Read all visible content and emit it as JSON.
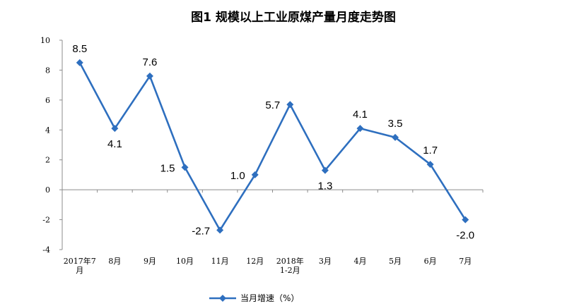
{
  "chart_data": {
    "type": "line",
    "title": "图1  规模以上工业原煤产量月度走势图",
    "categories": [
      "2017年7月",
      "8月",
      "9月",
      "10月",
      "11月",
      "12月",
      "2018年1-2月",
      "3月",
      "4月",
      "5月",
      "6月",
      "7月"
    ],
    "category_lines": [
      [
        "2017年7",
        "月"
      ],
      [
        "8月"
      ],
      [
        "9月"
      ],
      [
        "10月"
      ],
      [
        "11月"
      ],
      [
        "12月"
      ],
      [
        "2018年",
        "1-2月"
      ],
      [
        "3月"
      ],
      [
        "4月"
      ],
      [
        "5月"
      ],
      [
        "6月"
      ],
      [
        "7月"
      ]
    ],
    "series": [
      {
        "name": "当月增速（%）",
        "values": [
          8.5,
          4.1,
          7.6,
          1.5,
          -2.7,
          1.0,
          5.7,
          1.3,
          4.1,
          3.5,
          1.7,
          -2.0
        ],
        "data_labels": [
          "8.5",
          "4.1",
          "7.6",
          "1.5",
          "-2.7",
          "1.0",
          "5.7",
          "1.3",
          "4.1",
          "3.5",
          "1.7",
          "-2.0"
        ],
        "color": "#2e6fbf"
      }
    ],
    "yticks": [
      "10",
      "8",
      "6",
      "4",
      "2",
      "0",
      "-2",
      "-4"
    ],
    "ylim": [
      -4,
      10
    ],
    "grid": false,
    "legend": "bottom-center",
    "xlabel": "",
    "ylabel": ""
  }
}
